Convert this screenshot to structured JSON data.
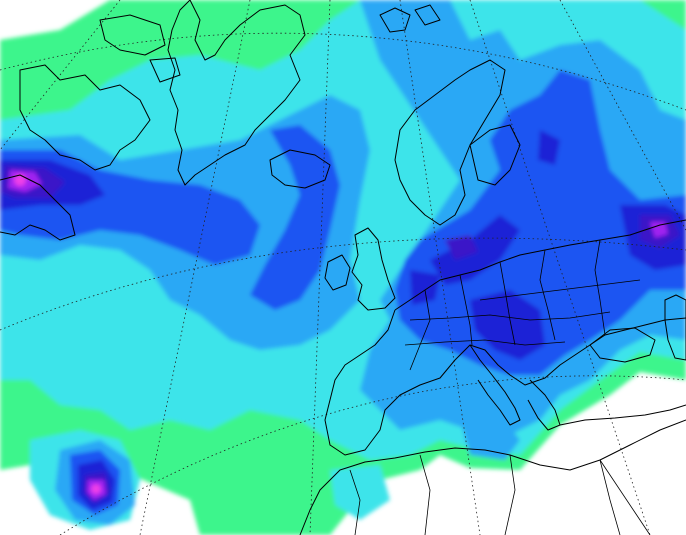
{
  "map": {
    "background_color": "#ffffff",
    "coastline_color": "#000000",
    "graticule_color": "#222222",
    "precipitation_classes": [
      {
        "level": 1,
        "color": "#3cf58c"
      },
      {
        "level": 2,
        "color": "#3ce4ea"
      },
      {
        "level": 3,
        "color": "#2aa8f5"
      },
      {
        "level": 4,
        "color": "#1f55f2"
      },
      {
        "level": 5,
        "color": "#1a22d6"
      },
      {
        "level": 6,
        "color": "#3a18c8"
      },
      {
        "level": 7,
        "color": "#a020f0"
      },
      {
        "level": 8,
        "color": "#ee40e8"
      }
    ]
  }
}
